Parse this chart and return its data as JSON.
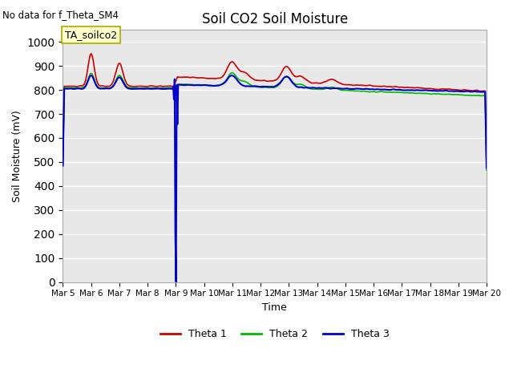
{
  "title": "Soil CO2 Soil Moisture",
  "no_data_text": "No data for f_Theta_SM4",
  "annotation_text": "TA_soilco2",
  "xlabel": "Time",
  "ylabel": "Soil Moisture (mV)",
  "ylim": [
    0,
    1050
  ],
  "yticks": [
    0,
    100,
    200,
    300,
    400,
    500,
    600,
    700,
    800,
    900,
    1000
  ],
  "bg_color": "#e8e8e8",
  "legend_colors": [
    "#cc0000",
    "#00bb00",
    "#0000cc"
  ],
  "title_fontsize": 12,
  "tick_fontsize": 7.5,
  "ylabel_fontsize": 9,
  "xlabel_fontsize": 9
}
